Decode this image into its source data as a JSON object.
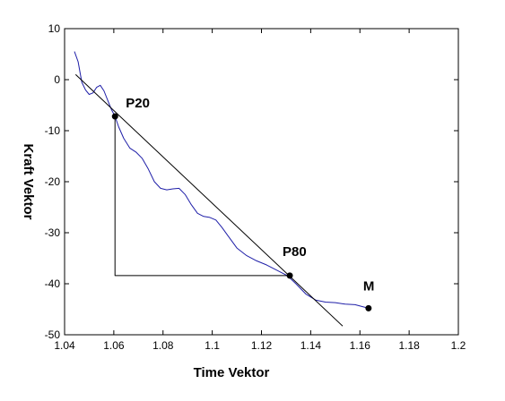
{
  "chart_data": {
    "type": "line",
    "title": "",
    "xlabel": "Time Vektor",
    "ylabel": "Kraft Vektor",
    "xlim": [
      1.04,
      1.2
    ],
    "ylim": [
      -50,
      10
    ],
    "xticks": [
      "1.04",
      "1.06",
      "1.08",
      "1.1",
      "1.12",
      "1.14",
      "1.16",
      "1.18",
      "1.2"
    ],
    "yticks": [
      "10",
      "0",
      "-10",
      "-20",
      "-30",
      "-40",
      "-50"
    ],
    "grid": false,
    "colors": {
      "signal": "#1f1fa8",
      "lines": "#000000",
      "axes": "#000000"
    },
    "series": [
      {
        "kind": "signal",
        "x": [
          1.044,
          1.0455,
          1.047,
          1.0485,
          1.05,
          1.0515,
          1.053,
          1.0545,
          1.056,
          1.0575,
          1.059,
          1.0605,
          1.062,
          1.064,
          1.0665,
          1.069,
          1.0715,
          1.074,
          1.0765,
          1.079,
          1.0815,
          1.084,
          1.0865,
          1.089,
          1.0915,
          1.094,
          1.0965,
          1.099,
          1.1015,
          1.104,
          1.107,
          1.11,
          1.114,
          1.118,
          1.122,
          1.126,
          1.1305,
          1.134,
          1.138,
          1.142,
          1.146,
          1.15,
          1.154,
          1.158,
          1.1635
        ],
        "y": [
          5.5,
          3.5,
          -0.5,
          -2,
          -2.9,
          -2.6,
          -1.5,
          -1.1,
          -2.2,
          -4,
          -5.8,
          -7.2,
          -9.3,
          -11.5,
          -13.4,
          -14.2,
          -15.4,
          -17.5,
          -20,
          -21.3,
          -21.6,
          -21.4,
          -21.3,
          -22.5,
          -24.5,
          -26.2,
          -26.8,
          -27,
          -27.5,
          -29,
          -31,
          -33,
          -34.5,
          -35.5,
          -36.3,
          -37.3,
          -38.4,
          -40,
          -42,
          -43.2,
          -43.6,
          -43.7,
          -44,
          -44.1,
          -44.8
        ]
      },
      {
        "kind": "fit-line",
        "x": [
          1.0445,
          1.153
        ],
        "y": [
          1.0,
          -48.3
        ]
      },
      {
        "kind": "triangle",
        "x": [
          1.0605,
          1.0605,
          1.1315
        ],
        "y": [
          -7.2,
          -38.4,
          -38.4
        ]
      }
    ],
    "points": [
      {
        "label": "P20",
        "x": 1.0605,
        "y": -7.2
      },
      {
        "label": "P80",
        "x": 1.1315,
        "y": -38.4
      },
      {
        "label": "M",
        "x": 1.1635,
        "y": -44.8
      }
    ]
  }
}
